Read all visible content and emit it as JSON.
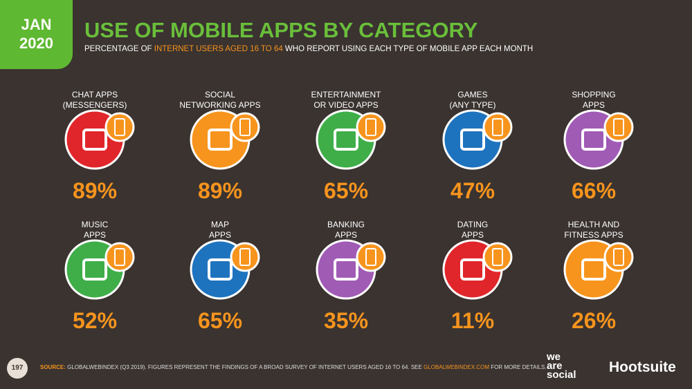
{
  "header": {
    "badge": [
      "JAN",
      "2020"
    ],
    "title": "USE OF MOBILE APPS BY CATEGORY",
    "subtitle": [
      "PERCENTAGE OF ",
      "INTERNET USERS AGED 16 TO 64",
      " WHO REPORT USING EACH TYPE OF MOBILE APP EACH MONTH"
    ]
  },
  "items": [
    {
      "label": [
        "CHAT APPS",
        "(MESSENGERS)"
      ],
      "value": "89%",
      "color": "#e0262a"
    },
    {
      "label": [
        "SOCIAL",
        "NETWORKING APPS"
      ],
      "value": "89%",
      "color": "#f7941d"
    },
    {
      "label": [
        "ENTERTAINMENT",
        "OR VIDEO APPS"
      ],
      "value": "65%",
      "color": "#3fae49"
    },
    {
      "label": [
        "GAMES",
        "(ANY TYPE)"
      ],
      "value": "47%",
      "color": "#1e73be"
    },
    {
      "label": [
        "SHOPPING",
        "APPS"
      ],
      "value": "66%",
      "color": "#a05bb5"
    },
    {
      "label": [
        "MUSIC",
        "APPS"
      ],
      "value": "52%",
      "color": "#3fae49"
    },
    {
      "label": [
        "MAP",
        "APPS"
      ],
      "value": "65%",
      "color": "#1e73be"
    },
    {
      "label": [
        "BANKING",
        "APPS"
      ],
      "value": "35%",
      "color": "#a05bb5"
    },
    {
      "label": [
        "DATING",
        "APPS"
      ],
      "value": "11%",
      "color": "#e0262a"
    },
    {
      "label": [
        "HEALTH AND",
        "FITNESS APPS"
      ],
      "value": "26%",
      "color": "#f7941d"
    }
  ],
  "footer": {
    "page": "197",
    "source": [
      "SOURCE:",
      " GLOBALWEBINDEX (Q3 2019). FIGURES REPRESENT THE FINDINGS OF A BROAD SURVEY OF INTERNET USERS AGED 16 TO 64. SEE ",
      "GLOBALWEBINDEX.COM",
      " FOR MORE DETAILS."
    ],
    "logos": [
      "we",
      "are",
      "social",
      "Hootsuite"
    ]
  }
}
